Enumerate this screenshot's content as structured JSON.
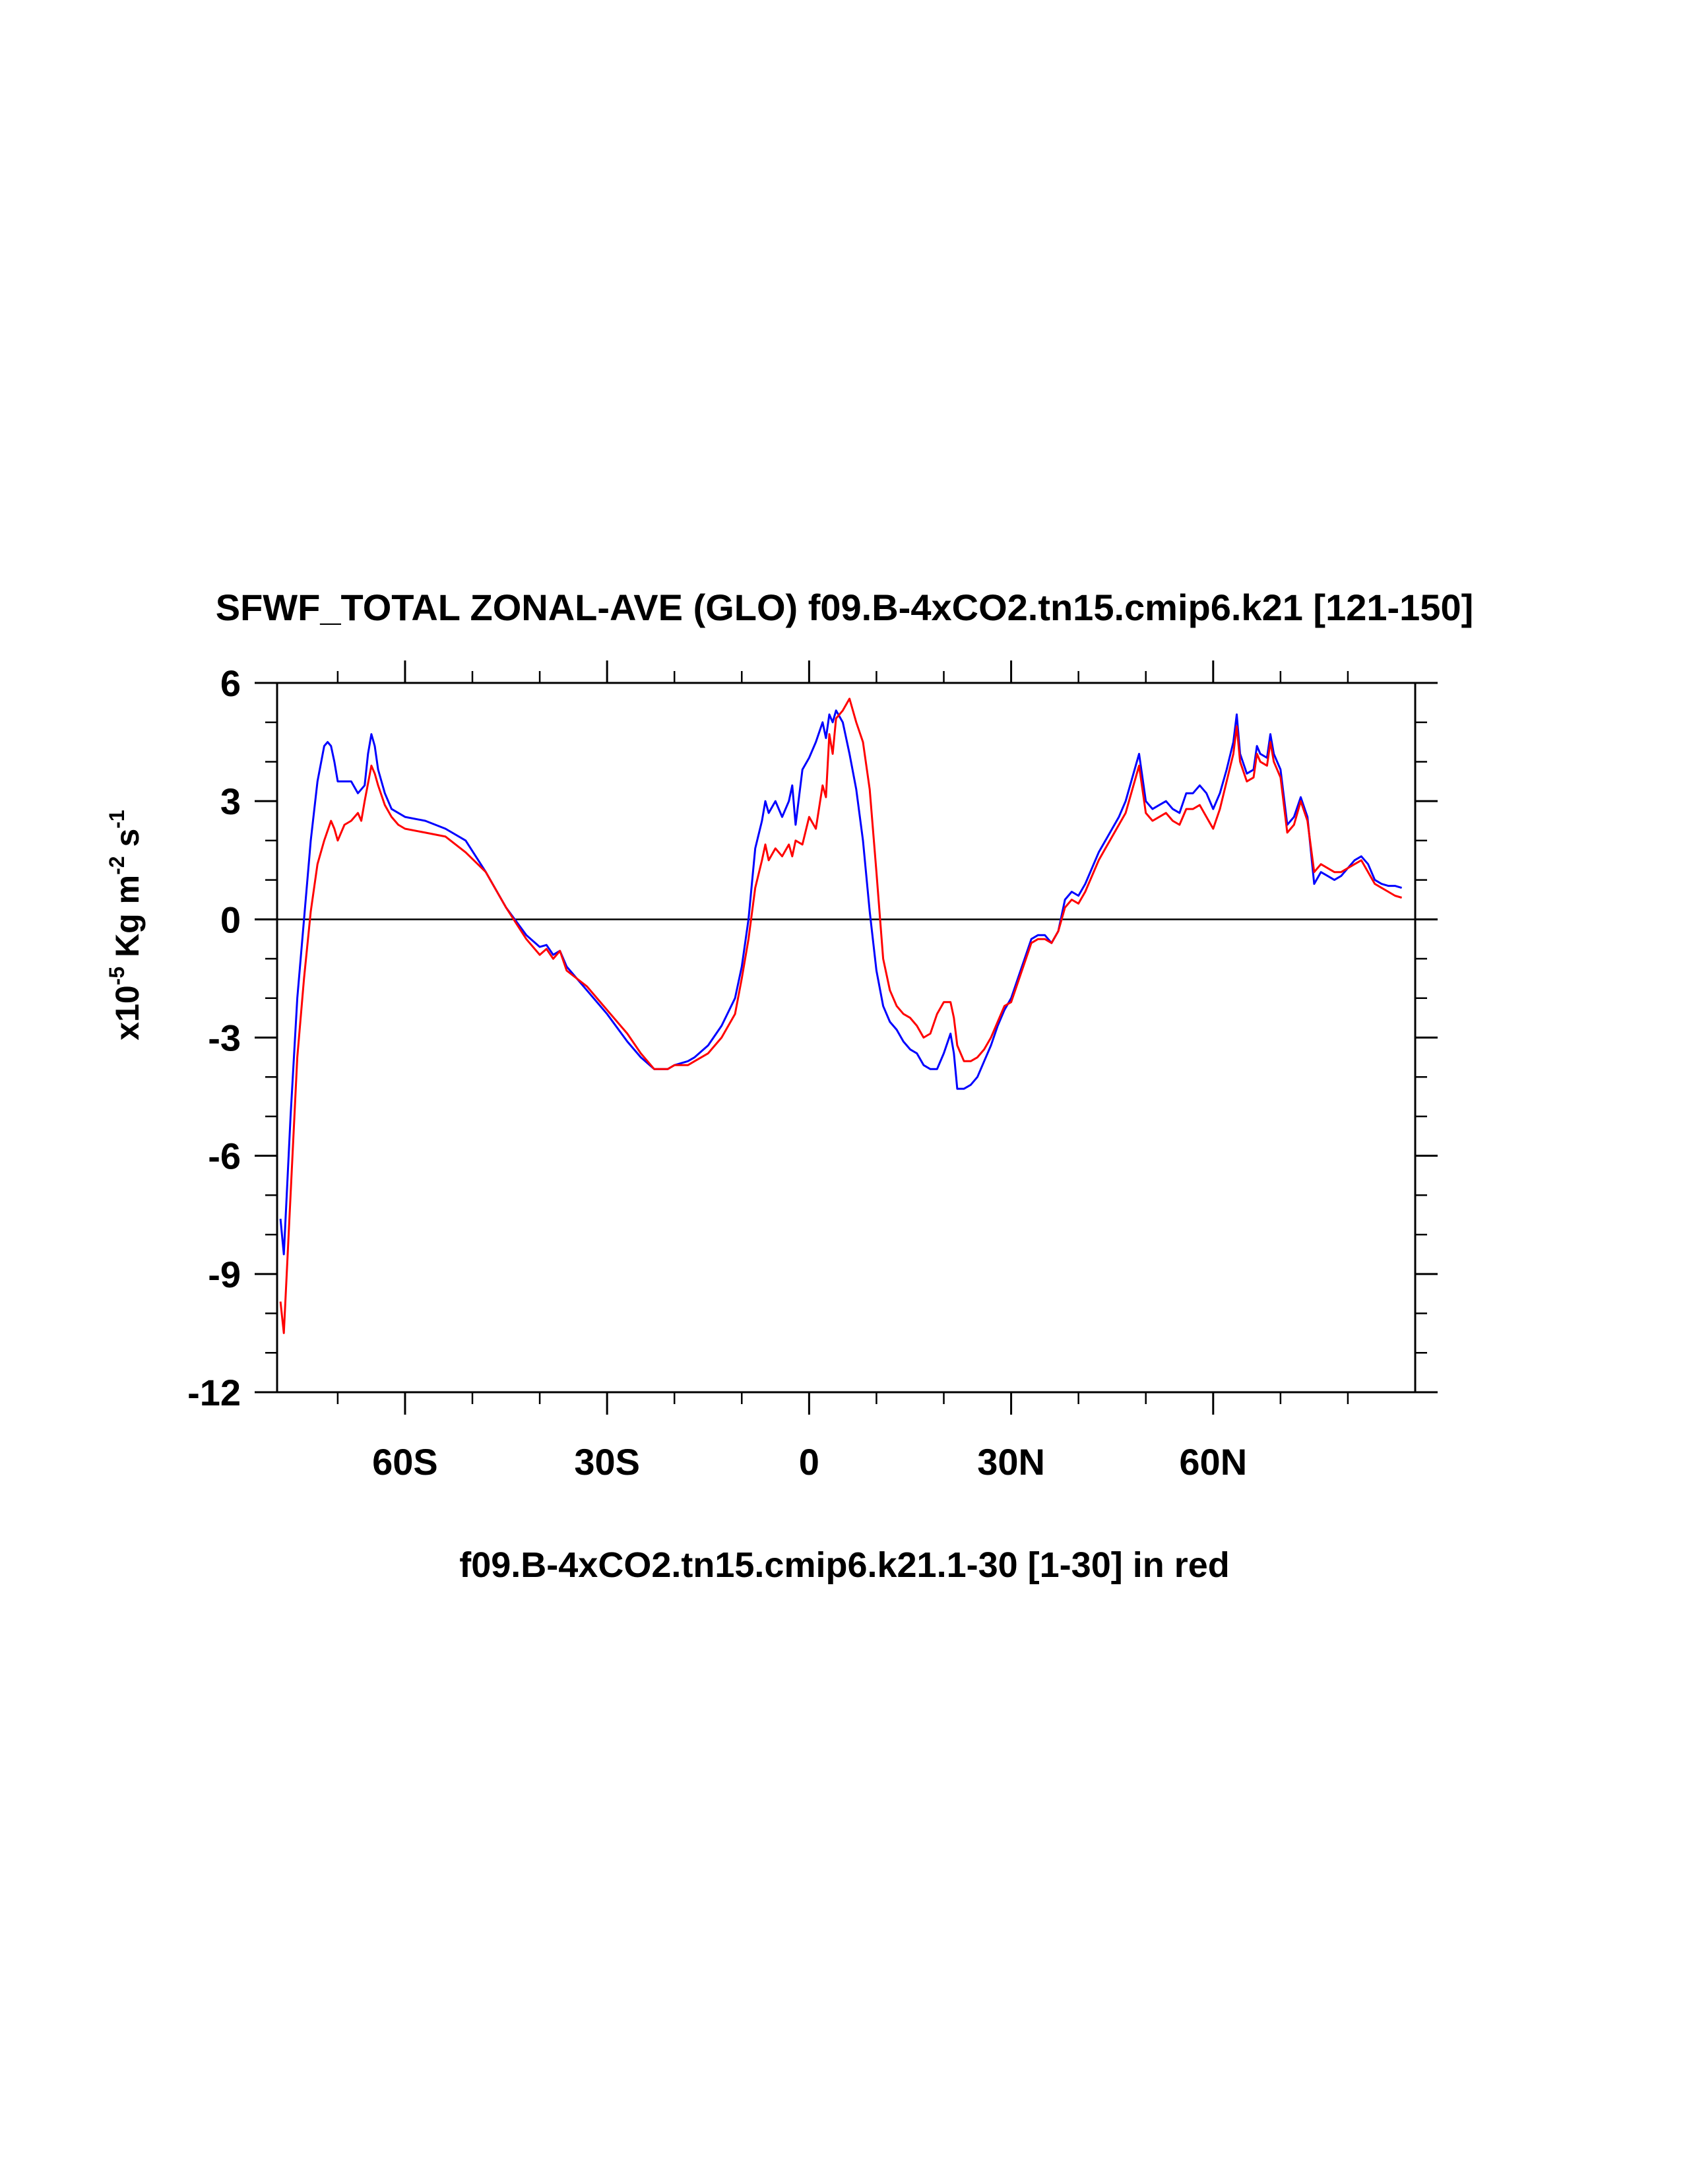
{
  "chart_data": {
    "type": "line",
    "title": "SFWF_TOTAL ZONAL-AVE (GLO) f09.B-4xCO2.tn15.cmip6.k21 [121-150]",
    "xlabel": "f09.B-4xCO2.tn15.cmip6.k21.1-30 [1-30] in red",
    "ylabel": {
      "prefix": "x10",
      "exp1": "-5",
      "mid": " Kg m",
      "exp2": "-2",
      "mid2": " s",
      "exp3": "-1"
    },
    "xlim": [
      -79,
      90
    ],
    "ylim": [
      -12,
      6
    ],
    "xticks": [
      {
        "value": -60,
        "label": "60S"
      },
      {
        "value": -30,
        "label": "30S"
      },
      {
        "value": 0,
        "label": "0"
      },
      {
        "value": 30,
        "label": "30N"
      },
      {
        "value": 60,
        "label": "60N"
      }
    ],
    "yticks": [
      {
        "value": 6,
        "label": "6"
      },
      {
        "value": 3,
        "label": "3"
      },
      {
        "value": 0,
        "label": "0"
      },
      {
        "value": -3,
        "label": "-3"
      },
      {
        "value": -6,
        "label": "-6"
      },
      {
        "value": -9,
        "label": "-9"
      },
      {
        "value": -12,
        "label": "-12"
      }
    ],
    "zero_line": true,
    "grid": false,
    "series": [
      {
        "color": "#0000ff",
        "points": [
          [
            -78.5,
            -7.6
          ],
          [
            -78,
            -8.5
          ],
          [
            -77,
            -5
          ],
          [
            -76,
            -2
          ],
          [
            -75,
            0
          ],
          [
            -74,
            2
          ],
          [
            -73,
            3.5
          ],
          [
            -72,
            4.4
          ],
          [
            -71.5,
            4.5
          ],
          [
            -71,
            4.4
          ],
          [
            -70.5,
            4
          ],
          [
            -70,
            3.5
          ],
          [
            -69,
            3.5
          ],
          [
            -68,
            3.5
          ],
          [
            -67,
            3.2
          ],
          [
            -66,
            3.4
          ],
          [
            -65.5,
            4.2
          ],
          [
            -65,
            4.7
          ],
          [
            -64.5,
            4.4
          ],
          [
            -64,
            3.8
          ],
          [
            -63,
            3.2
          ],
          [
            -62,
            2.8
          ],
          [
            -61,
            2.7
          ],
          [
            -60,
            2.6
          ],
          [
            -57,
            2.5
          ],
          [
            -54,
            2.3
          ],
          [
            -51,
            2.0
          ],
          [
            -48,
            1.2
          ],
          [
            -45,
            0.3
          ],
          [
            -42,
            -0.4
          ],
          [
            -40,
            -0.7
          ],
          [
            -39,
            -0.65
          ],
          [
            -38,
            -0.9
          ],
          [
            -37,
            -0.8
          ],
          [
            -36,
            -1.2
          ],
          [
            -33,
            -1.8
          ],
          [
            -30,
            -2.4
          ],
          [
            -27,
            -3.1
          ],
          [
            -25,
            -3.5
          ],
          [
            -23,
            -3.8
          ],
          [
            -21,
            -3.8
          ],
          [
            -20,
            -3.7
          ],
          [
            -18,
            -3.6
          ],
          [
            -17,
            -3.5
          ],
          [
            -15,
            -3.2
          ],
          [
            -13,
            -2.7
          ],
          [
            -11,
            -2.0
          ],
          [
            -10,
            -1.2
          ],
          [
            -9,
            0.0
          ],
          [
            -8,
            1.8
          ],
          [
            -7,
            2.5
          ],
          [
            -6.5,
            3.0
          ],
          [
            -6,
            2.7
          ],
          [
            -5,
            3.0
          ],
          [
            -4,
            2.6
          ],
          [
            -3,
            3.0
          ],
          [
            -2.5,
            3.4
          ],
          [
            -2,
            2.4
          ],
          [
            -1,
            3.8
          ],
          [
            0,
            4.1
          ],
          [
            1,
            4.5
          ],
          [
            2,
            5.0
          ],
          [
            2.5,
            4.6
          ],
          [
            3,
            5.2
          ],
          [
            3.5,
            5.0
          ],
          [
            4,
            5.3
          ],
          [
            5,
            5.0
          ],
          [
            6,
            4.2
          ],
          [
            7,
            3.3
          ],
          [
            8,
            2.0
          ],
          [
            9,
            0.2
          ],
          [
            10,
            -1.3
          ],
          [
            11,
            -2.2
          ],
          [
            12,
            -2.6
          ],
          [
            13,
            -2.8
          ],
          [
            14,
            -3.1
          ],
          [
            15,
            -3.3
          ],
          [
            16,
            -3.4
          ],
          [
            17,
            -3.7
          ],
          [
            18,
            -3.8
          ],
          [
            19,
            -3.8
          ],
          [
            20,
            -3.4
          ],
          [
            21,
            -2.9
          ],
          [
            21.5,
            -3.4
          ],
          [
            22,
            -4.3
          ],
          [
            23,
            -4.3
          ],
          [
            24,
            -4.2
          ],
          [
            25,
            -4.0
          ],
          [
            26,
            -3.6
          ],
          [
            27,
            -3.2
          ],
          [
            28,
            -2.7
          ],
          [
            29,
            -2.3
          ],
          [
            30,
            -2.0
          ],
          [
            31,
            -1.5
          ],
          [
            32,
            -1.0
          ],
          [
            33,
            -0.5
          ],
          [
            34,
            -0.4
          ],
          [
            35,
            -0.4
          ],
          [
            36,
            -0.6
          ],
          [
            37,
            -0.3
          ],
          [
            38,
            0.5
          ],
          [
            39,
            0.7
          ],
          [
            40,
            0.6
          ],
          [
            41,
            0.9
          ],
          [
            42,
            1.3
          ],
          [
            43,
            1.7
          ],
          [
            44,
            2.0
          ],
          [
            45,
            2.3
          ],
          [
            46,
            2.6
          ],
          [
            47,
            3.0
          ],
          [
            48,
            3.6
          ],
          [
            49,
            4.2
          ],
          [
            49.5,
            3.6
          ],
          [
            50,
            3.0
          ],
          [
            51,
            2.8
          ],
          [
            52,
            2.9
          ],
          [
            53,
            3.0
          ],
          [
            54,
            2.8
          ],
          [
            55,
            2.7
          ],
          [
            56,
            3.2
          ],
          [
            57,
            3.2
          ],
          [
            58,
            3.4
          ],
          [
            59,
            3.2
          ],
          [
            60,
            2.8
          ],
          [
            61,
            3.2
          ],
          [
            62,
            3.8
          ],
          [
            63,
            4.5
          ],
          [
            63.5,
            5.2
          ],
          [
            64,
            4.2
          ],
          [
            65,
            3.7
          ],
          [
            66,
            3.8
          ],
          [
            66.5,
            4.4
          ],
          [
            67,
            4.2
          ],
          [
            68,
            4.1
          ],
          [
            68.5,
            4.7
          ],
          [
            69,
            4.2
          ],
          [
            70,
            3.8
          ],
          [
            71,
            2.4
          ],
          [
            72,
            2.6
          ],
          [
            73,
            3.1
          ],
          [
            74,
            2.6
          ],
          [
            75,
            0.9
          ],
          [
            76,
            1.2
          ],
          [
            77,
            1.1
          ],
          [
            78,
            1.0
          ],
          [
            79,
            1.1
          ],
          [
            80,
            1.3
          ],
          [
            81,
            1.5
          ],
          [
            82,
            1.6
          ],
          [
            83,
            1.4
          ],
          [
            84,
            1.0
          ],
          [
            85,
            0.9
          ],
          [
            86,
            0.85
          ],
          [
            87,
            0.85
          ],
          [
            88,
            0.8
          ]
        ]
      },
      {
        "color": "#ff0000",
        "points": [
          [
            -78.5,
            -9.7
          ],
          [
            -78,
            -10.5
          ],
          [
            -77,
            -7
          ],
          [
            -76,
            -3.5
          ],
          [
            -75,
            -1.5
          ],
          [
            -74,
            0.2
          ],
          [
            -73,
            1.4
          ],
          [
            -72,
            2.0
          ],
          [
            -71,
            2.5
          ],
          [
            -70.5,
            2.3
          ],
          [
            -70,
            2.0
          ],
          [
            -69,
            2.4
          ],
          [
            -68,
            2.5
          ],
          [
            -67,
            2.7
          ],
          [
            -66.5,
            2.5
          ],
          [
            -66,
            3.0
          ],
          [
            -65,
            3.9
          ],
          [
            -64.5,
            3.7
          ],
          [
            -64,
            3.4
          ],
          [
            -63,
            2.9
          ],
          [
            -62,
            2.6
          ],
          [
            -61,
            2.4
          ],
          [
            -60,
            2.3
          ],
          [
            -57,
            2.2
          ],
          [
            -54,
            2.1
          ],
          [
            -51,
            1.7
          ],
          [
            -48,
            1.2
          ],
          [
            -45,
            0.3
          ],
          [
            -42,
            -0.5
          ],
          [
            -40,
            -0.9
          ],
          [
            -39,
            -0.75
          ],
          [
            -38,
            -1.0
          ],
          [
            -37,
            -0.8
          ],
          [
            -36,
            -1.3
          ],
          [
            -33,
            -1.7
          ],
          [
            -30,
            -2.3
          ],
          [
            -27,
            -2.9
          ],
          [
            -25,
            -3.4
          ],
          [
            -23,
            -3.8
          ],
          [
            -21,
            -3.8
          ],
          [
            -20,
            -3.7
          ],
          [
            -18,
            -3.7
          ],
          [
            -17,
            -3.6
          ],
          [
            -15,
            -3.4
          ],
          [
            -13,
            -3.0
          ],
          [
            -11,
            -2.4
          ],
          [
            -10,
            -1.5
          ],
          [
            -9,
            -0.5
          ],
          [
            -8,
            0.8
          ],
          [
            -7,
            1.5
          ],
          [
            -6.5,
            1.9
          ],
          [
            -6,
            1.5
          ],
          [
            -5,
            1.8
          ],
          [
            -4,
            1.6
          ],
          [
            -3,
            1.9
          ],
          [
            -2.5,
            1.6
          ],
          [
            -2,
            2.0
          ],
          [
            -1,
            1.9
          ],
          [
            0,
            2.6
          ],
          [
            1,
            2.3
          ],
          [
            2,
            3.4
          ],
          [
            2.5,
            3.1
          ],
          [
            3,
            4.7
          ],
          [
            3.5,
            4.2
          ],
          [
            4,
            5.1
          ],
          [
            5,
            5.3
          ],
          [
            6,
            5.6
          ],
          [
            7,
            5.0
          ],
          [
            8,
            4.5
          ],
          [
            9,
            3.3
          ],
          [
            10,
            1.2
          ],
          [
            11,
            -1.0
          ],
          [
            12,
            -1.8
          ],
          [
            13,
            -2.2
          ],
          [
            14,
            -2.4
          ],
          [
            15,
            -2.5
          ],
          [
            16,
            -2.7
          ],
          [
            17,
            -3.0
          ],
          [
            18,
            -2.9
          ],
          [
            19,
            -2.4
          ],
          [
            20,
            -2.1
          ],
          [
            21,
            -2.1
          ],
          [
            21.5,
            -2.5
          ],
          [
            22,
            -3.2
          ],
          [
            23,
            -3.6
          ],
          [
            24,
            -3.6
          ],
          [
            25,
            -3.5
          ],
          [
            26,
            -3.3
          ],
          [
            27,
            -3.0
          ],
          [
            28,
            -2.6
          ],
          [
            29,
            -2.2
          ],
          [
            30,
            -2.1
          ],
          [
            31,
            -1.6
          ],
          [
            32,
            -1.1
          ],
          [
            33,
            -0.6
          ],
          [
            34,
            -0.5
          ],
          [
            35,
            -0.5
          ],
          [
            36,
            -0.6
          ],
          [
            37,
            -0.3
          ],
          [
            38,
            0.3
          ],
          [
            39,
            0.5
          ],
          [
            40,
            0.4
          ],
          [
            41,
            0.7
          ],
          [
            42,
            1.1
          ],
          [
            43,
            1.5
          ],
          [
            44,
            1.8
          ],
          [
            45,
            2.1
          ],
          [
            46,
            2.4
          ],
          [
            47,
            2.7
          ],
          [
            48,
            3.3
          ],
          [
            49,
            3.9
          ],
          [
            49.5,
            3.3
          ],
          [
            50,
            2.7
          ],
          [
            51,
            2.5
          ],
          [
            52,
            2.6
          ],
          [
            53,
            2.7
          ],
          [
            54,
            2.5
          ],
          [
            55,
            2.4
          ],
          [
            56,
            2.8
          ],
          [
            57,
            2.8
          ],
          [
            58,
            2.9
          ],
          [
            59,
            2.6
          ],
          [
            60,
            2.3
          ],
          [
            61,
            2.8
          ],
          [
            62,
            3.5
          ],
          [
            63,
            4.2
          ],
          [
            63.5,
            4.9
          ],
          [
            64,
            4.0
          ],
          [
            65,
            3.5
          ],
          [
            66,
            3.6
          ],
          [
            66.5,
            4.2
          ],
          [
            67,
            4.0
          ],
          [
            68,
            3.9
          ],
          [
            68.5,
            4.5
          ],
          [
            69,
            4.0
          ],
          [
            70,
            3.6
          ],
          [
            71,
            2.2
          ],
          [
            72,
            2.4
          ],
          [
            73,
            3.0
          ],
          [
            74,
            2.5
          ],
          [
            75,
            1.2
          ],
          [
            76,
            1.4
          ],
          [
            77,
            1.3
          ],
          [
            78,
            1.2
          ],
          [
            79,
            1.2
          ],
          [
            80,
            1.3
          ],
          [
            81,
            1.4
          ],
          [
            82,
            1.5
          ],
          [
            83,
            1.2
          ],
          [
            84,
            0.9
          ],
          [
            85,
            0.8
          ],
          [
            86,
            0.7
          ],
          [
            87,
            0.6
          ],
          [
            88,
            0.55
          ]
        ]
      }
    ]
  }
}
